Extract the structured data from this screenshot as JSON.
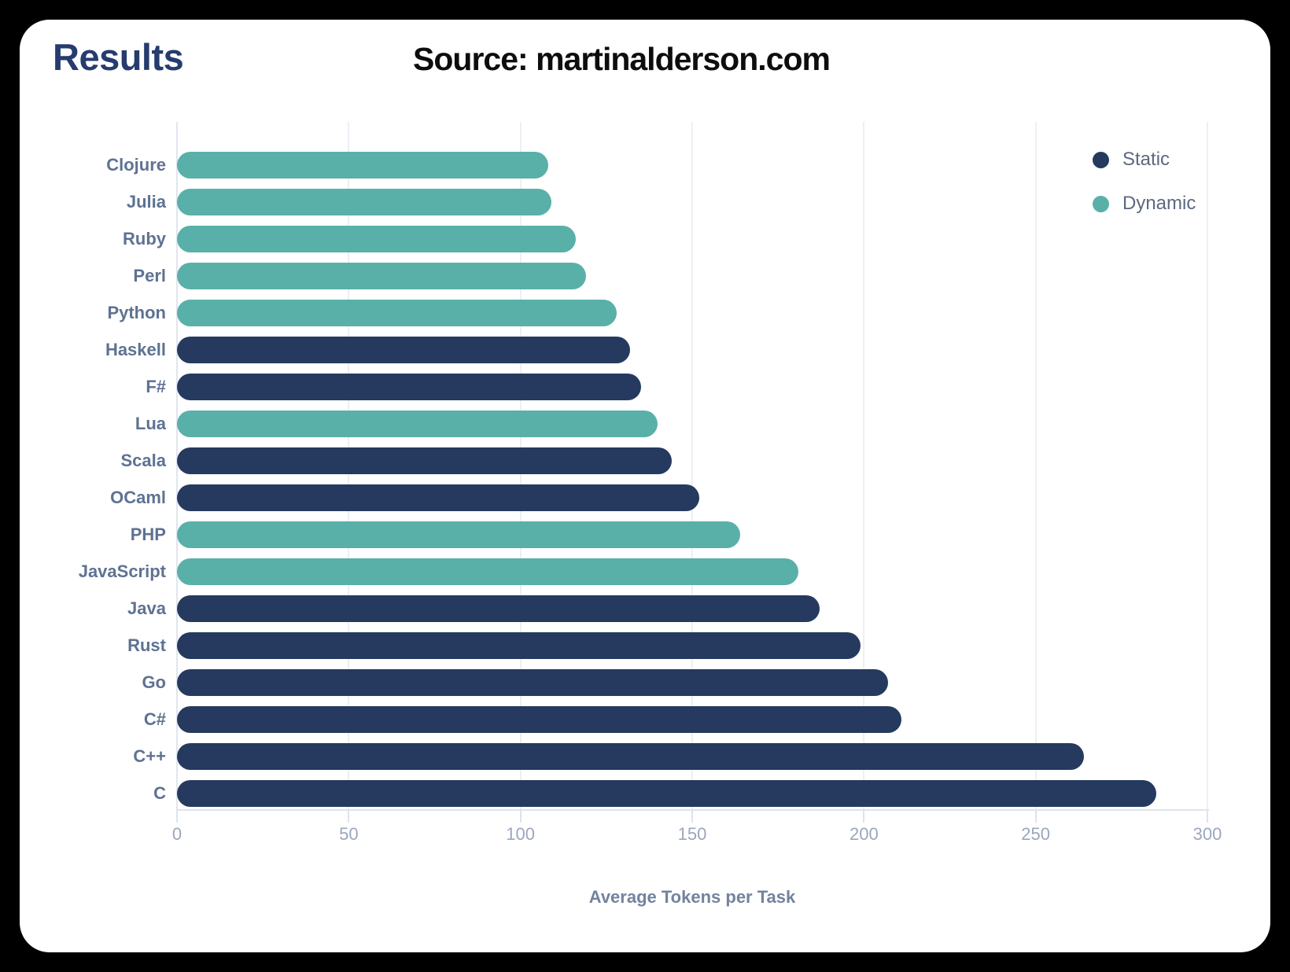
{
  "header": {
    "title": "Results",
    "source": "Source: martinalderson.com"
  },
  "colors": {
    "background": "#000000",
    "card": "#FFFFFF",
    "title_text": "#263C6E",
    "source_text": "#0D0D0D",
    "static_bar": "#253A5E",
    "dynamic_bar": "#59B0A9",
    "grid_line": "#ECEFF4",
    "axis_line": "#DEE3EC",
    "y_label_text": "#5E7292",
    "tick_label_text": "#9AA7BC",
    "axis_title_text": "#73829D",
    "legend_text": "#5C6880"
  },
  "chart_data": {
    "type": "bar",
    "orientation": "horizontal",
    "title": "",
    "xlabel": "Average Tokens per Task",
    "ylabel": "",
    "xlim": [
      0,
      300
    ],
    "x_ticks": [
      "0",
      "50",
      "100",
      "150",
      "200",
      "250",
      "300"
    ],
    "grid": true,
    "legend_position": "top-right",
    "series": [
      {
        "name": "Static",
        "color": "#253A5E"
      },
      {
        "name": "Dynamic",
        "color": "#59B0A9"
      }
    ],
    "bars": [
      {
        "label": "Clojure",
        "value": 108,
        "series": "Dynamic"
      },
      {
        "label": "Julia",
        "value": 109,
        "series": "Dynamic"
      },
      {
        "label": "Ruby",
        "value": 116,
        "series": "Dynamic"
      },
      {
        "label": "Perl",
        "value": 119,
        "series": "Dynamic"
      },
      {
        "label": "Python",
        "value": 128,
        "series": "Dynamic"
      },
      {
        "label": "Haskell",
        "value": 132,
        "series": "Static"
      },
      {
        "label": "F#",
        "value": 135,
        "series": "Static"
      },
      {
        "label": "Lua",
        "value": 140,
        "series": "Dynamic"
      },
      {
        "label": "Scala",
        "value": 144,
        "series": "Static"
      },
      {
        "label": "OCaml",
        "value": 152,
        "series": "Static"
      },
      {
        "label": "PHP",
        "value": 164,
        "series": "Dynamic"
      },
      {
        "label": "JavaScript",
        "value": 181,
        "series": "Dynamic"
      },
      {
        "label": "Java",
        "value": 187,
        "series": "Static"
      },
      {
        "label": "Rust",
        "value": 199,
        "series": "Static"
      },
      {
        "label": "Go",
        "value": 207,
        "series": "Static"
      },
      {
        "label": "C#",
        "value": 211,
        "series": "Static"
      },
      {
        "label": "C++",
        "value": 264,
        "series": "Static"
      },
      {
        "label": "C",
        "value": 285,
        "series": "Static"
      }
    ]
  }
}
